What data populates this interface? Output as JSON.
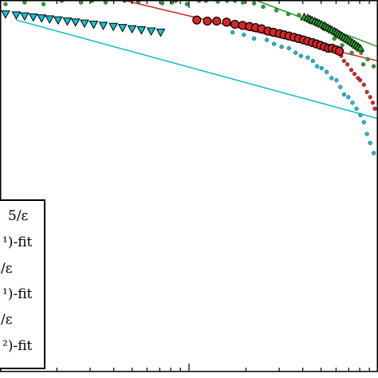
{
  "chart_data": {
    "type": "scatter",
    "title": "",
    "xlabel": "",
    "ylabel": "",
    "xscale": "log",
    "yscale": "log",
    "xlim": [
      0.01,
      1
    ],
    "ylim": [
      0.01,
      1
    ],
    "grid": false,
    "legend_placement": "lower-left",
    "legend": [
      {
        "text": "5/ε",
        "kind": "marker",
        "series": "red-sparse"
      },
      {
        "text": "¹)-fit",
        "kind": "line",
        "series": "red-fit"
      },
      {
        "text": "/ε",
        "kind": "marker",
        "series": "cyan-sparse"
      },
      {
        "text": "¹)-fit",
        "kind": "line",
        "series": "cyan-fit"
      },
      {
        "text": "/ε",
        "kind": "marker",
        "series": "green-sparse"
      },
      {
        "text": "²)-fit",
        "kind": "line",
        "series": "green-fit"
      }
    ],
    "series": [
      {
        "id": "green-sparse",
        "color": "#2ca02c",
        "marker": "small-dot",
        "points": [
          [
            0.0107,
            0.95
          ],
          [
            0.0135,
            0.97
          ],
          [
            0.017,
            0.95
          ],
          [
            0.0212,
            0.99
          ],
          [
            0.0268,
            0.97
          ],
          [
            0.0307,
            0.99
          ],
          [
            0.0362,
            0.97
          ],
          [
            0.0456,
            0.99
          ],
          [
            0.054,
            0.98
          ],
          [
            0.0722,
            0.96
          ],
          [
            0.0813,
            0.97
          ],
          [
            0.085,
            0.99
          ],
          [
            0.0975,
            0.95
          ],
          [
            0.113,
            0.99
          ],
          [
            0.123,
            0.99
          ],
          [
            0.142,
            0.98
          ],
          [
            0.159,
            0.99
          ],
          [
            0.175,
            0.99
          ],
          [
            0.193,
            0.97
          ],
          [
            0.221,
            0.96
          ],
          [
            0.247,
            0.92
          ],
          [
            0.29,
            0.88
          ],
          [
            0.335,
            0.84
          ],
          [
            0.382,
            0.83
          ],
          [
            0.439,
            0.76
          ],
          [
            0.482,
            0.74
          ],
          [
            0.515,
            0.7
          ],
          [
            0.588,
            0.62
          ],
          [
            0.646,
            0.57
          ],
          [
            0.727,
            0.52
          ],
          [
            0.814,
            0.52
          ],
          [
            0.836,
            0.45
          ],
          [
            0.883,
            0.48
          ],
          [
            0.949,
            0.44
          ]
        ]
      },
      {
        "id": "green-dense",
        "color": "#2ca02c",
        "marker": "triangle-up",
        "points": [
          [
            0.407,
            0.81
          ],
          [
            0.425,
            0.8
          ],
          [
            0.437,
            0.79
          ],
          [
            0.448,
            0.78
          ],
          [
            0.463,
            0.77
          ],
          [
            0.476,
            0.76
          ],
          [
            0.489,
            0.75
          ],
          [
            0.503,
            0.74
          ],
          [
            0.519,
            0.73
          ],
          [
            0.53,
            0.72
          ],
          [
            0.544,
            0.71
          ],
          [
            0.558,
            0.7
          ],
          [
            0.571,
            0.69
          ],
          [
            0.589,
            0.68
          ],
          [
            0.603,
            0.67
          ],
          [
            0.617,
            0.66
          ],
          [
            0.632,
            0.65
          ],
          [
            0.646,
            0.64
          ],
          [
            0.661,
            0.63
          ],
          [
            0.679,
            0.62
          ],
          [
            0.697,
            0.61
          ],
          [
            0.715,
            0.6
          ],
          [
            0.733,
            0.59
          ],
          [
            0.751,
            0.58
          ],
          [
            0.77,
            0.57
          ],
          [
            0.788,
            0.56
          ],
          [
            0.807,
            0.55
          ]
        ]
      },
      {
        "id": "red-sparse",
        "color": "#d62728",
        "marker": "small-dot",
        "points": [
          [
            0.639,
            0.5
          ],
          [
            0.661,
            0.47
          ],
          [
            0.689,
            0.45
          ],
          [
            0.722,
            0.42
          ],
          [
            0.751,
            0.4
          ],
          [
            0.784,
            0.38
          ],
          [
            0.805,
            0.37
          ],
          [
            0.842,
            0.35
          ],
          [
            0.874,
            0.32
          ],
          [
            0.909,
            0.3
          ],
          [
            0.938,
            0.28
          ],
          [
            0.962,
            0.26
          ]
        ]
      },
      {
        "id": "red-dense",
        "color": "#d62728",
        "marker": "ringed-circle",
        "points": [
          [
            0.11,
            0.78
          ],
          [
            0.125,
            0.77
          ],
          [
            0.14,
            0.77
          ],
          [
            0.158,
            0.76
          ],
          [
            0.175,
            0.74
          ],
          [
            0.192,
            0.73
          ],
          [
            0.209,
            0.72
          ],
          [
            0.225,
            0.71
          ],
          [
            0.242,
            0.7
          ],
          [
            0.262,
            0.68
          ],
          [
            0.28,
            0.67
          ],
          [
            0.301,
            0.66
          ],
          [
            0.318,
            0.65
          ],
          [
            0.338,
            0.64
          ],
          [
            0.359,
            0.63
          ],
          [
            0.38,
            0.62
          ],
          [
            0.403,
            0.61
          ],
          [
            0.425,
            0.6
          ],
          [
            0.449,
            0.59
          ],
          [
            0.472,
            0.58
          ],
          [
            0.496,
            0.57
          ],
          [
            0.521,
            0.56
          ],
          [
            0.546,
            0.55
          ],
          [
            0.571,
            0.55
          ],
          [
            0.599,
            0.54
          ],
          [
            0.625,
            0.53
          ]
        ]
      },
      {
        "id": "cyan-sparse",
        "color": "#17becf",
        "marker": "small-dot",
        "points": [
          [
            0.17,
            0.67
          ],
          [
            0.195,
            0.65
          ],
          [
            0.221,
            0.62
          ],
          [
            0.258,
            0.61
          ],
          [
            0.282,
            0.58
          ],
          [
            0.309,
            0.56
          ],
          [
            0.338,
            0.55
          ],
          [
            0.366,
            0.52
          ],
          [
            0.391,
            0.5
          ],
          [
            0.425,
            0.49
          ],
          [
            0.452,
            0.47
          ],
          [
            0.476,
            0.44
          ],
          [
            0.503,
            0.43
          ],
          [
            0.535,
            0.41
          ],
          [
            0.568,
            0.38
          ],
          [
            0.603,
            0.37
          ],
          [
            0.632,
            0.34
          ],
          [
            0.661,
            0.31
          ],
          [
            0.697,
            0.3
          ],
          [
            0.733,
            0.28
          ],
          [
            0.77,
            0.26
          ],
          [
            0.807,
            0.24
          ],
          [
            0.842,
            0.22
          ],
          [
            0.874,
            0.19
          ],
          [
            0.909,
            0.17
          ],
          [
            0.949,
            0.15
          ]
        ]
      },
      {
        "id": "cyan-dense",
        "color": "#17becf",
        "marker": "triangle-down",
        "points": [
          [
            0.0107,
            0.84
          ],
          [
            0.0122,
            0.83
          ],
          [
            0.0135,
            0.82
          ],
          [
            0.015,
            0.81
          ],
          [
            0.0166,
            0.8
          ],
          [
            0.0183,
            0.79
          ],
          [
            0.0203,
            0.78
          ],
          [
            0.0227,
            0.77
          ],
          [
            0.0251,
            0.76
          ],
          [
            0.028,
            0.75
          ],
          [
            0.0313,
            0.74
          ],
          [
            0.0352,
            0.73
          ],
          [
            0.0398,
            0.72
          ],
          [
            0.0445,
            0.71
          ],
          [
            0.05,
            0.7
          ],
          [
            0.056,
            0.69
          ],
          [
            0.0631,
            0.68
          ],
          [
            0.0708,
            0.67
          ]
        ]
      },
      {
        "id": "green-fit",
        "color": "#2ca02c",
        "kind": "fit-line",
        "points": [
          [
            0.23,
            0.99
          ],
          [
            1.0,
            0.56
          ]
        ]
      },
      {
        "id": "red-fit",
        "color": "#d62728",
        "kind": "fit-line",
        "points": [
          [
            0.0464,
            0.99
          ],
          [
            1.0,
            0.47
          ]
        ]
      },
      {
        "id": "cyan-fit",
        "color": "#17becf",
        "kind": "fit-line",
        "points": [
          [
            0.0122,
            0.78
          ],
          [
            1.0,
            0.23
          ]
        ]
      }
    ]
  }
}
